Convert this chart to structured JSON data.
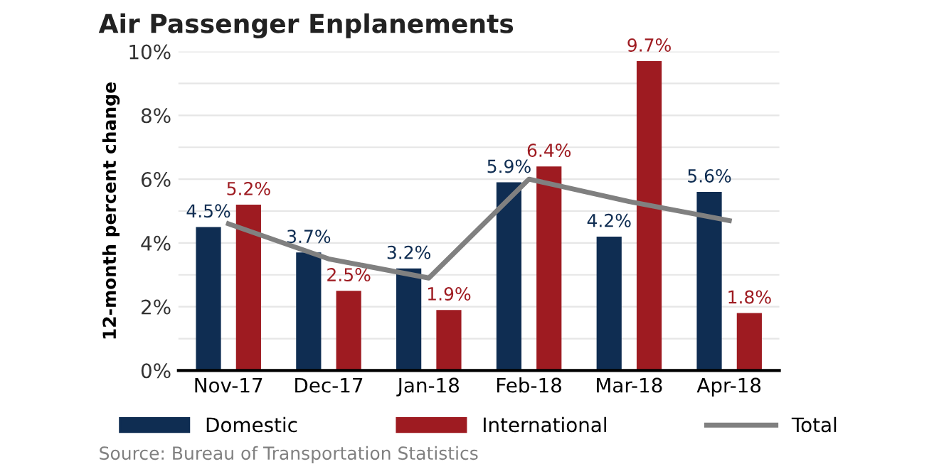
{
  "chart_data": {
    "type": "bar",
    "title": "Air Passenger Enplanements",
    "ylabel": "12-month percent change",
    "categories": [
      "Nov-17",
      "Dec-17",
      "Jan-18",
      "Feb-18",
      "Mar-18",
      "Apr-18"
    ],
    "series": [
      {
        "name": "Domestic",
        "color": "#0f2d52",
        "values": [
          4.5,
          3.7,
          3.2,
          5.9,
          4.2,
          5.6
        ],
        "value_labels": [
          "4.5%",
          "3.7%",
          "3.2%",
          "5.9%",
          "4.2%",
          "5.6%"
        ]
      },
      {
        "name": "International",
        "color": "#9e1b21",
        "values": [
          5.2,
          2.5,
          1.9,
          6.4,
          9.7,
          1.8
        ],
        "value_labels": [
          "5.2%",
          "2.5%",
          "1.9%",
          "6.4%",
          "9.7%",
          "1.8%"
        ]
      },
      {
        "name": "Total",
        "type": "line",
        "color": "#808080",
        "values": [
          4.6,
          3.5,
          2.9,
          6.0,
          5.3,
          4.7
        ]
      }
    ],
    "ylim": [
      0,
      10
    ],
    "yticks": [
      {
        "value": 0,
        "label": "0%"
      },
      {
        "value": 1,
        "label": null
      },
      {
        "value": 2,
        "label": "2%"
      },
      {
        "value": 3,
        "label": null
      },
      {
        "value": 4,
        "label": "4%"
      },
      {
        "value": 5,
        "label": null
      },
      {
        "value": 6,
        "label": "6%"
      },
      {
        "value": 7,
        "label": null
      },
      {
        "value": 8,
        "label": "8%"
      },
      {
        "value": 9,
        "label": null
      },
      {
        "value": 10,
        "label": "10%"
      }
    ],
    "grid": "y",
    "legend": "bottom",
    "marker": "none",
    "line_style": "solid",
    "annotations": [
      "Source: Bureau of Transportation Statistics"
    ]
  }
}
